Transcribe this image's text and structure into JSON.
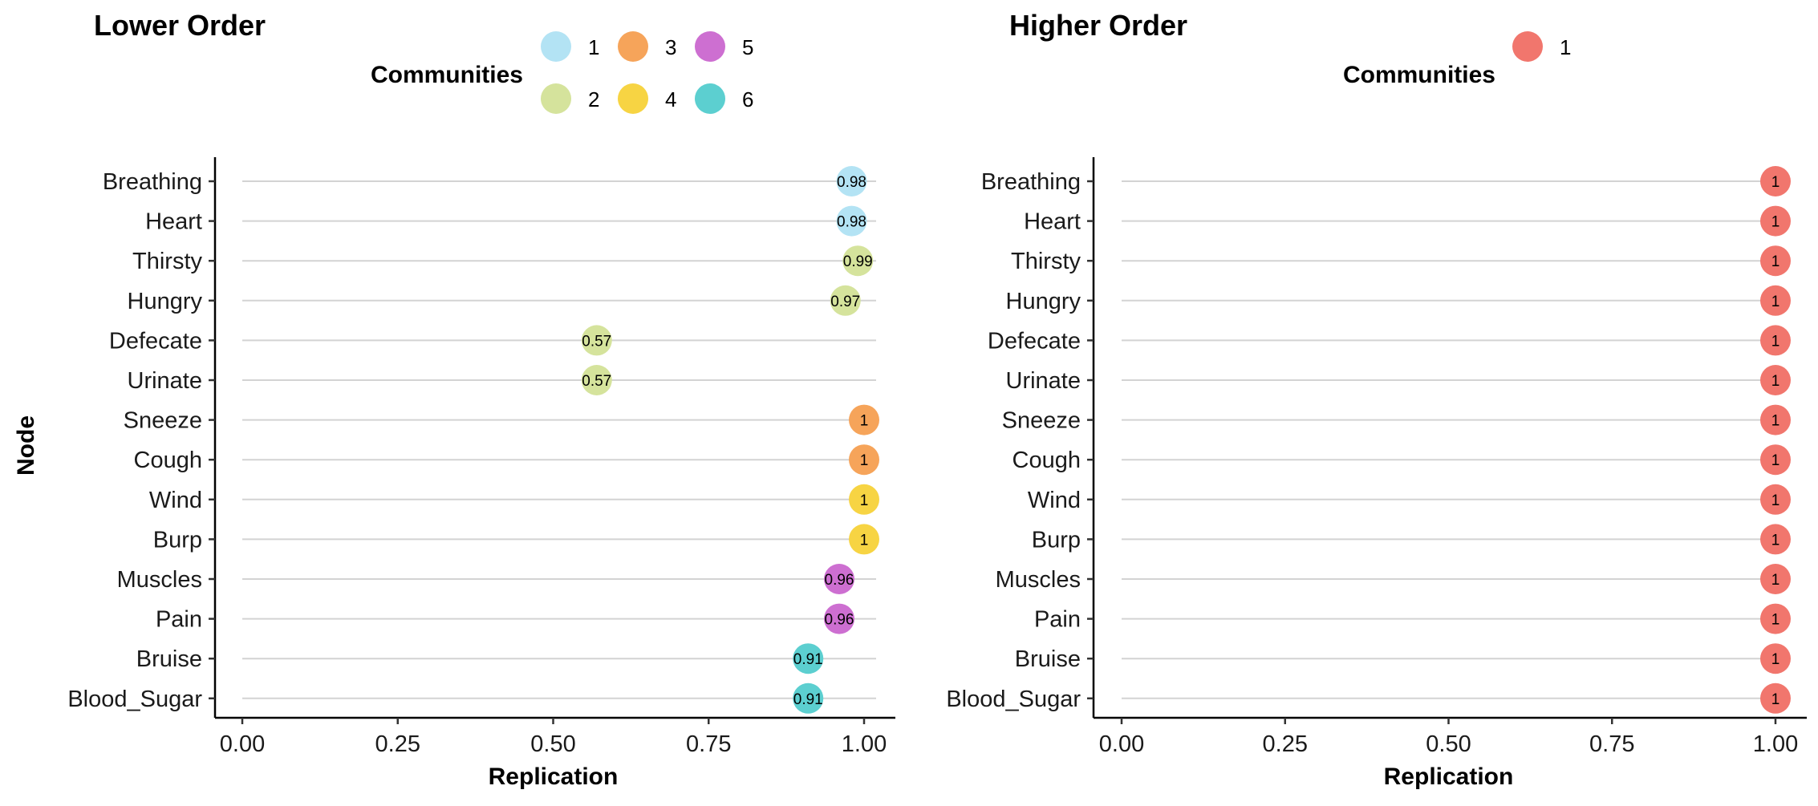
{
  "chart_data": [
    {
      "type": "scatter",
      "title": "Lower Order",
      "xlabel": "Replication",
      "ylabel": "Node",
      "xlim": [
        0,
        1
      ],
      "xticks": [
        "0.00",
        "0.25",
        "0.50",
        "0.75",
        "1.00"
      ],
      "nodes": [
        "Breathing",
        "Heart",
        "Thirsty",
        "Hungry",
        "Defecate",
        "Urinate",
        "Sneeze",
        "Cough",
        "Wind",
        "Burp",
        "Muscles",
        "Pain",
        "Bruise",
        "Blood_Sugar"
      ],
      "values": [
        0.98,
        0.98,
        0.99,
        0.97,
        0.57,
        0.57,
        1,
        1,
        1,
        1,
        0.96,
        0.96,
        0.91,
        0.91
      ],
      "labels": [
        "0.98",
        "0.98",
        "0.99",
        "0.97",
        "0.57",
        "0.57",
        "1",
        "1",
        "1",
        "1",
        "0.96",
        "0.96",
        "0.91",
        "0.91"
      ],
      "communities": [
        1,
        1,
        2,
        2,
        2,
        2,
        3,
        3,
        4,
        4,
        5,
        5,
        6,
        6
      ],
      "legend": {
        "title": "Communities",
        "items": [
          {
            "label": "1",
            "color": "#B3E3F4"
          },
          {
            "label": "2",
            "color": "#D5E39C"
          },
          {
            "label": "3",
            "color": "#F6A45A"
          },
          {
            "label": "4",
            "color": "#F7D443"
          },
          {
            "label": "5",
            "color": "#CD6FD1"
          },
          {
            "label": "6",
            "color": "#5CCFD0"
          }
        ]
      },
      "grid": "horizontal",
      "legend_position": "top"
    },
    {
      "type": "scatter",
      "title": "Higher Order",
      "xlabel": "Replication",
      "ylabel": "",
      "xlim": [
        0,
        1
      ],
      "xticks": [
        "0.00",
        "0.25",
        "0.50",
        "0.75",
        "1.00"
      ],
      "nodes": [
        "Breathing",
        "Heart",
        "Thirsty",
        "Hungry",
        "Defecate",
        "Urinate",
        "Sneeze",
        "Cough",
        "Wind",
        "Burp",
        "Muscles",
        "Pain",
        "Bruise",
        "Blood_Sugar"
      ],
      "values": [
        1,
        1,
        1,
        1,
        1,
        1,
        1,
        1,
        1,
        1,
        1,
        1,
        1,
        1
      ],
      "labels": [
        "1",
        "1",
        "1",
        "1",
        "1",
        "1",
        "1",
        "1",
        "1",
        "1",
        "1",
        "1",
        "1",
        "1"
      ],
      "communities": [
        1,
        1,
        1,
        1,
        1,
        1,
        1,
        1,
        1,
        1,
        1,
        1,
        1,
        1
      ],
      "legend": {
        "title": "Communities",
        "items": [
          {
            "label": "1",
            "color": "#F1766D"
          }
        ]
      },
      "grid": "horizontal",
      "legend_position": "top"
    }
  ]
}
